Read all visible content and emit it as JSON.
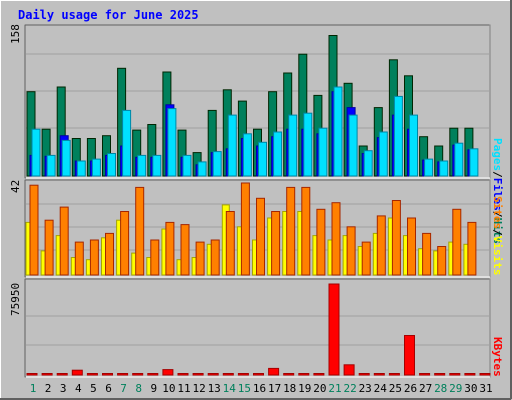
{
  "title": "Daily usage for June 2025",
  "colors": {
    "title": "#0000ff",
    "hits": "#00805c",
    "files": "#0000ff",
    "pages": "#00e0ff",
    "visits": "#ffff00",
    "sites": "#ff8000",
    "kbytes": "#ff0000",
    "weekend_label": "#00805c",
    "weekday_label": "#000000"
  },
  "legend": {
    "top": [
      "Pages",
      "Files",
      "Hits"
    ],
    "middle": [
      "Sites",
      "Visits"
    ],
    "bottom": [
      "KBytes"
    ],
    "separator": "/"
  },
  "chart_data": [
    {
      "type": "bar",
      "panel": "hits-files-pages",
      "categories": [
        "1",
        "2",
        "3",
        "4",
        "5",
        "6",
        "7",
        "8",
        "9",
        "10",
        "11",
        "12",
        "13",
        "14",
        "15",
        "16",
        "17",
        "18",
        "19",
        "20",
        "21",
        "22",
        "23",
        "24",
        "25",
        "26",
        "27",
        "28",
        "29",
        "30",
        "31"
      ],
      "scale_max_label": "158",
      "ylim": [
        0,
        158
      ],
      "series": [
        {
          "name": "Hits",
          "values": [
            90,
            50,
            95,
            40,
            40,
            43,
            115,
            49,
            55,
            111,
            49,
            25,
            70,
            92,
            80,
            50,
            90,
            110,
            130,
            86,
            150,
            99,
            32,
            73,
            124,
            107,
            42,
            32,
            51,
            51,
            0
          ]
        },
        {
          "name": "Files",
          "values": [
            22,
            21,
            43,
            16,
            16,
            22,
            32,
            20,
            20,
            76,
            20,
            12,
            25,
            29,
            40,
            32,
            42,
            50,
            50,
            45,
            90,
            73,
            24,
            41,
            65,
            50,
            17,
            15,
            33,
            28,
            0
          ]
        },
        {
          "name": "Pages",
          "values": [
            50,
            22,
            38,
            16,
            18,
            24,
            70,
            22,
            22,
            72,
            22,
            15,
            26,
            65,
            45,
            36,
            47,
            65,
            67,
            51,
            95,
            65,
            27,
            47,
            85,
            65,
            18,
            16,
            35,
            29,
            0
          ]
        }
      ]
    },
    {
      "type": "bar",
      "panel": "visits-sites",
      "categories": [
        "1",
        "2",
        "3",
        "4",
        "5",
        "6",
        "7",
        "8",
        "9",
        "10",
        "11",
        "12",
        "13",
        "14",
        "15",
        "16",
        "17",
        "18",
        "19",
        "20",
        "21",
        "22",
        "23",
        "24",
        "25",
        "26",
        "27",
        "28",
        "29",
        "30",
        "31"
      ],
      "scale_max_label": "42",
      "ylim": [
        0,
        42
      ],
      "series": [
        {
          "name": "Visits",
          "values": [
            24,
            11,
            18,
            8,
            7,
            17,
            25,
            10,
            8,
            21,
            7,
            8,
            14,
            32,
            22,
            16,
            26,
            29,
            29,
            18,
            16,
            18,
            13,
            19,
            26,
            18,
            12,
            11,
            15,
            14,
            0
          ]
        },
        {
          "name": "Sites",
          "values": [
            41,
            25,
            31,
            15,
            16,
            19,
            29,
            40,
            16,
            24,
            23,
            15,
            16,
            29,
            42,
            35,
            29,
            40,
            40,
            30,
            33,
            22,
            15,
            27,
            34,
            26,
            19,
            13,
            30,
            24,
            0
          ]
        }
      ]
    },
    {
      "type": "bar",
      "panel": "kbytes",
      "categories": [
        "1",
        "2",
        "3",
        "4",
        "5",
        "6",
        "7",
        "8",
        "9",
        "10",
        "11",
        "12",
        "13",
        "14",
        "15",
        "16",
        "17",
        "18",
        "19",
        "20",
        "21",
        "22",
        "23",
        "24",
        "25",
        "26",
        "27",
        "28",
        "29",
        "30",
        "31"
      ],
      "scale_max_label": "75950",
      "ylim": [
        0,
        75950
      ],
      "series": [
        {
          "name": "KBytes",
          "values": [
            150,
            150,
            150,
            4000,
            150,
            150,
            1000,
            150,
            150,
            4500,
            150,
            150,
            150,
            150,
            150,
            150,
            5500,
            150,
            150,
            150,
            75950,
            8500,
            150,
            150,
            150,
            33000,
            150,
            150,
            150,
            150,
            150
          ]
        }
      ]
    }
  ],
  "x_axis": {
    "labels": [
      "1",
      "2",
      "3",
      "4",
      "5",
      "6",
      "7",
      "8",
      "9",
      "10",
      "11",
      "12",
      "13",
      "14",
      "15",
      "16",
      "17",
      "18",
      "19",
      "20",
      "21",
      "22",
      "23",
      "24",
      "25",
      "26",
      "27",
      "28",
      "29",
      "30",
      "31"
    ],
    "weekend_days": [
      "1",
      "7",
      "8",
      "14",
      "15",
      "21",
      "22",
      "28",
      "29"
    ]
  }
}
